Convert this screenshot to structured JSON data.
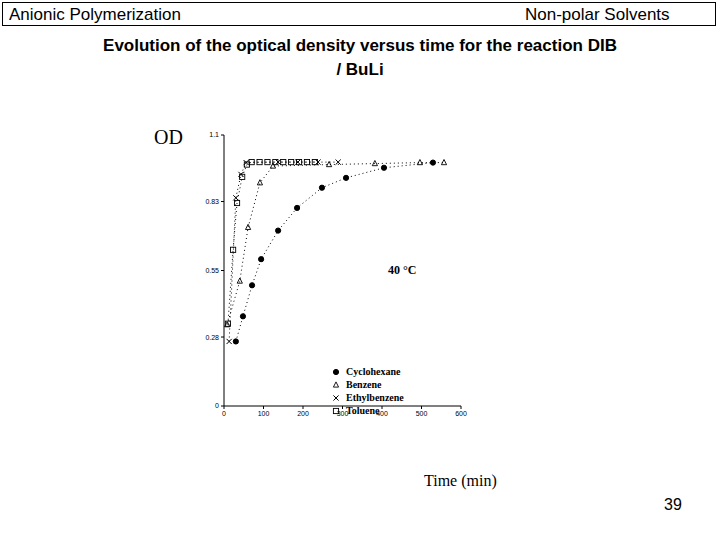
{
  "slide": {
    "header_left": "Anionic Polymerization",
    "header_right": "Non-polar Solvents",
    "page_number": "39"
  },
  "chart_data": {
    "type": "scatter",
    "title": "Evolution of the optical density versus time for the reaction DIB / BuLi",
    "x_label": "Time (min)",
    "y_label": "OD",
    "annotations": [
      "40 °C"
    ],
    "xlim": [
      0,
      600
    ],
    "xticks": [
      0,
      100,
      200,
      300,
      400,
      500,
      600
    ],
    "ylim": [
      0,
      1.1
    ],
    "yticks": [
      0,
      0.28,
      0.55,
      0.83,
      1.1
    ],
    "grid": false,
    "legend": "lower right",
    "line_style": "dotted",
    "series": [
      {
        "name": "Cyclohexane",
        "color": "#000000",
        "marker": "circle",
        "x": [
          30,
          48,
          71,
          94,
          137,
          185,
          248,
          309,
          405,
          529
        ],
        "values": [
          0.262,
          0.364,
          0.49,
          0.596,
          0.712,
          0.804,
          0.886,
          0.926,
          0.967,
          0.988
        ]
      },
      {
        "name": "Benzene",
        "color": "#000000",
        "marker": "triangle",
        "x": [
          8,
          40,
          61,
          91,
          124,
          266,
          382,
          496,
          557
        ],
        "values": [
          0.33,
          0.507,
          0.725,
          0.906,
          0.974,
          0.98,
          0.984,
          0.988,
          0.988
        ]
      },
      {
        "name": "Ethylbenzene",
        "color": "#000000",
        "marker": "x",
        "x": [
          13,
          30,
          43,
          56,
          137,
          187,
          238,
          289
        ],
        "values": [
          0.262,
          0.845,
          0.94,
          0.988,
          0.99,
          0.99,
          0.99,
          0.99
        ]
      },
      {
        "name": "Toluene",
        "color": "#000000",
        "marker": "square",
        "x": [
          10,
          23,
          33,
          46,
          58,
          70,
          90,
          110,
          130,
          150,
          170,
          190,
          210,
          230
        ],
        "values": [
          0.334,
          0.634,
          0.824,
          0.93,
          0.98,
          0.99,
          0.99,
          0.99,
          0.99,
          0.99,
          0.99,
          0.99,
          0.99,
          0.99
        ]
      }
    ]
  }
}
